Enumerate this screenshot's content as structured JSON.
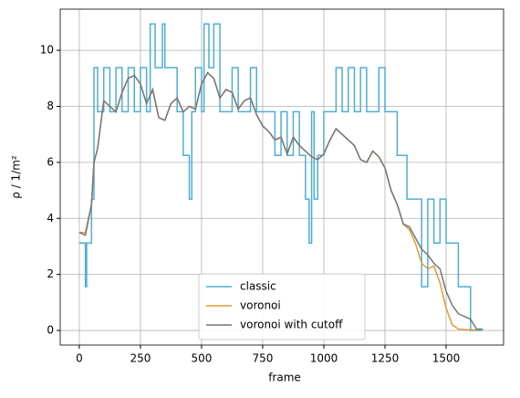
{
  "chart_data": {
    "type": "line",
    "xlabel": "frame",
    "ylabel": "ρ / 1/m²",
    "xlim": [
      -78,
      1735
    ],
    "ylim": [
      -0.52,
      11.47
    ],
    "xticks": [
      0,
      250,
      500,
      750,
      1000,
      1250,
      1500
    ],
    "yticks": [
      0,
      2,
      4,
      6,
      8,
      10
    ],
    "grid": true,
    "legend": "lower center",
    "series": [
      {
        "name": "classic",
        "color": "#4eaed4",
        "step": true,
        "x": [
          0,
          25,
          30,
          50,
          60,
          75,
          100,
          125,
          150,
          175,
          200,
          225,
          250,
          275,
          290,
          310,
          340,
          350,
          400,
          425,
          450,
          460,
          475,
          500,
          510,
          530,
          550,
          575,
          625,
          650,
          700,
          725,
          800,
          825,
          850,
          875,
          900,
          925,
          940,
          950,
          960,
          975,
          1000,
          1050,
          1075,
          1100,
          1125,
          1150,
          1175,
          1225,
          1250,
          1300,
          1340,
          1400,
          1425,
          1450,
          1475,
          1500,
          1550,
          1600,
          1650
        ],
        "values": [
          3.12,
          1.56,
          3.12,
          4.69,
          9.38,
          7.81,
          9.38,
          7.81,
          9.38,
          7.81,
          9.38,
          7.81,
          9.38,
          7.81,
          10.94,
          9.38,
          10.94,
          9.38,
          7.81,
          6.25,
          4.69,
          7.81,
          9.38,
          7.81,
          10.94,
          9.38,
          10.94,
          7.81,
          9.38,
          7.81,
          9.38,
          7.81,
          6.25,
          7.81,
          6.25,
          7.81,
          6.25,
          4.69,
          3.12,
          7.81,
          4.69,
          6.25,
          7.81,
          9.38,
          7.81,
          9.38,
          7.81,
          9.38,
          7.81,
          9.38,
          7.81,
          6.25,
          4.69,
          1.56,
          4.69,
          3.12,
          4.69,
          3.12,
          1.56,
          0,
          0
        ]
      },
      {
        "name": "voronoi",
        "color": "#e09a3a",
        "step": false,
        "x": [
          0,
          25,
          50,
          60,
          75,
          100,
          125,
          150,
          175,
          200,
          225,
          250,
          275,
          300,
          325,
          350,
          375,
          400,
          425,
          450,
          475,
          500,
          525,
          550,
          575,
          600,
          625,
          650,
          675,
          700,
          725,
          750,
          775,
          800,
          825,
          850,
          875,
          900,
          925,
          950,
          975,
          1000,
          1025,
          1050,
          1075,
          1100,
          1125,
          1150,
          1175,
          1200,
          1225,
          1250,
          1275,
          1300,
          1325,
          1350,
          1375,
          1400,
          1425,
          1450,
          1475,
          1500,
          1525,
          1550,
          1600,
          1625
        ],
        "values": [
          3.5,
          3.5,
          4.5,
          6,
          6.5,
          8.2,
          8,
          7.8,
          8.5,
          9,
          9.1,
          8.8,
          8.1,
          8.6,
          7.6,
          7.5,
          8.1,
          8.3,
          7.8,
          8,
          7.9,
          8.8,
          9.2,
          9,
          8.3,
          8.6,
          8.5,
          7.9,
          8.2,
          8.3,
          7.7,
          7.3,
          7.1,
          6.8,
          6.9,
          6.3,
          6.9,
          6.6,
          6.4,
          6.2,
          6.1,
          6.3,
          6.8,
          7.2,
          7,
          6.8,
          6.6,
          6.1,
          6,
          6.4,
          6.2,
          5.8,
          5,
          4.5,
          3.8,
          3.6,
          3.1,
          2.4,
          2.2,
          2.3,
          1.7,
          0.8,
          0.2,
          0.05,
          0.02,
          0.02
        ]
      },
      {
        "name": "voronoi with cutoff",
        "color": "#777777",
        "step": false,
        "x": [
          0,
          25,
          50,
          60,
          75,
          100,
          125,
          150,
          175,
          200,
          225,
          250,
          275,
          300,
          325,
          350,
          375,
          400,
          425,
          450,
          475,
          500,
          525,
          550,
          575,
          600,
          625,
          650,
          675,
          700,
          725,
          750,
          775,
          800,
          825,
          850,
          875,
          900,
          925,
          950,
          975,
          1000,
          1025,
          1050,
          1075,
          1100,
          1125,
          1150,
          1175,
          1200,
          1225,
          1250,
          1275,
          1300,
          1325,
          1350,
          1375,
          1400,
          1425,
          1450,
          1475,
          1500,
          1525,
          1550,
          1575,
          1600,
          1625,
          1650
        ],
        "values": [
          3.5,
          3.4,
          4.5,
          6,
          6.5,
          8.2,
          8,
          7.8,
          8.5,
          9,
          9.1,
          8.8,
          8.1,
          8.6,
          7.6,
          7.5,
          8.1,
          8.3,
          7.8,
          8,
          7.9,
          8.8,
          9.2,
          9,
          8.3,
          8.6,
          8.5,
          7.9,
          8.2,
          8.3,
          7.7,
          7.3,
          7.1,
          6.8,
          6.9,
          6.3,
          6.9,
          6.6,
          6.4,
          6.2,
          6.1,
          6.3,
          6.8,
          7.2,
          7,
          6.8,
          6.6,
          6.1,
          6,
          6.4,
          6.2,
          5.8,
          5,
          4.5,
          3.8,
          3.7,
          3.3,
          2.9,
          2.7,
          2.4,
          2.2,
          1.4,
          0.9,
          0.6,
          0.5,
          0.4,
          0.05,
          0.05
        ]
      }
    ]
  }
}
